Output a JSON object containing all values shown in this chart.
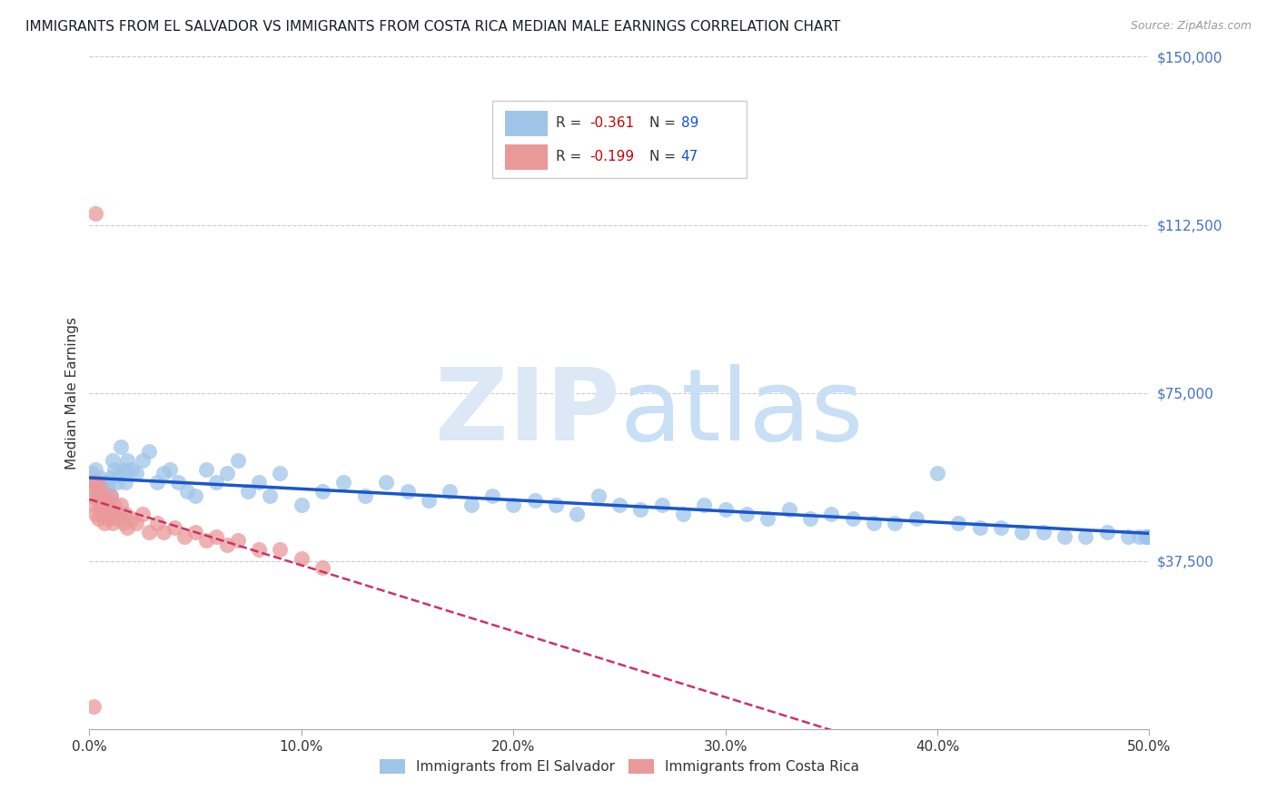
{
  "title": "IMMIGRANTS FROM EL SALVADOR VS IMMIGRANTS FROM COSTA RICA MEDIAN MALE EARNINGS CORRELATION CHART",
  "source": "Source: ZipAtlas.com",
  "ylabel": "Median Male Earnings",
  "R_blue": -0.361,
  "N_blue": 89,
  "R_pink": -0.199,
  "N_pink": 47,
  "blue_color": "#9fc5e8",
  "pink_color": "#ea9999",
  "trend_blue": "#1a56cc",
  "trend_pink": "#cc3366",
  "background_color": "#ffffff",
  "watermark_color": "#dce8f5",
  "ylim": [
    0,
    150000
  ],
  "xlim": [
    0.0,
    0.5
  ],
  "legend1_label": "Immigrants from El Salvador",
  "legend2_label": "Immigrants from Costa Rica",
  "blue_x": [
    0.001,
    0.002,
    0.003,
    0.003,
    0.004,
    0.004,
    0.005,
    0.005,
    0.006,
    0.006,
    0.007,
    0.007,
    0.008,
    0.008,
    0.009,
    0.009,
    0.01,
    0.01,
    0.011,
    0.012,
    0.013,
    0.014,
    0.015,
    0.016,
    0.017,
    0.018,
    0.02,
    0.022,
    0.025,
    0.028,
    0.032,
    0.035,
    0.038,
    0.042,
    0.046,
    0.05,
    0.055,
    0.06,
    0.065,
    0.07,
    0.075,
    0.08,
    0.085,
    0.09,
    0.1,
    0.11,
    0.12,
    0.13,
    0.14,
    0.15,
    0.16,
    0.17,
    0.18,
    0.19,
    0.2,
    0.21,
    0.22,
    0.23,
    0.24,
    0.25,
    0.26,
    0.27,
    0.28,
    0.29,
    0.3,
    0.31,
    0.32,
    0.33,
    0.34,
    0.35,
    0.36,
    0.37,
    0.38,
    0.39,
    0.4,
    0.41,
    0.42,
    0.43,
    0.44,
    0.45,
    0.46,
    0.47,
    0.48,
    0.49,
    0.495,
    0.498,
    0.499,
    0.5,
    0.5
  ],
  "blue_y": [
    57000,
    55000,
    53000,
    58000,
    51000,
    54000,
    50000,
    56000,
    52000,
    55000,
    50000,
    53000,
    49000,
    55000,
    51000,
    54000,
    52000,
    56000,
    60000,
    58000,
    55000,
    57000,
    63000,
    58000,
    55000,
    60000,
    58000,
    57000,
    60000,
    62000,
    55000,
    57000,
    58000,
    55000,
    53000,
    52000,
    58000,
    55000,
    57000,
    60000,
    53000,
    55000,
    52000,
    57000,
    50000,
    53000,
    55000,
    52000,
    55000,
    53000,
    51000,
    53000,
    50000,
    52000,
    50000,
    51000,
    50000,
    48000,
    52000,
    50000,
    49000,
    50000,
    48000,
    50000,
    49000,
    48000,
    47000,
    49000,
    47000,
    48000,
    47000,
    46000,
    46000,
    47000,
    57000,
    46000,
    45000,
    45000,
    44000,
    44000,
    43000,
    43000,
    44000,
    43000,
    43000,
    43000,
    43000,
    43000,
    43000
  ],
  "pink_x": [
    0.001,
    0.001,
    0.002,
    0.002,
    0.003,
    0.003,
    0.004,
    0.004,
    0.005,
    0.005,
    0.006,
    0.006,
    0.007,
    0.007,
    0.008,
    0.008,
    0.009,
    0.009,
    0.01,
    0.01,
    0.011,
    0.012,
    0.013,
    0.014,
    0.015,
    0.016,
    0.017,
    0.018,
    0.02,
    0.022,
    0.025,
    0.028,
    0.032,
    0.035,
    0.04,
    0.045,
    0.05,
    0.055,
    0.06,
    0.065,
    0.07,
    0.08,
    0.09,
    0.1,
    0.11,
    0.003,
    0.002
  ],
  "pink_y": [
    55000,
    52000,
    55000,
    50000,
    55000,
    48000,
    52000,
    47000,
    50000,
    54000,
    48000,
    52000,
    50000,
    46000,
    48000,
    51000,
    47000,
    50000,
    48000,
    52000,
    46000,
    50000,
    47000,
    48000,
    50000,
    46000,
    48000,
    45000,
    47000,
    46000,
    48000,
    44000,
    46000,
    44000,
    45000,
    43000,
    44000,
    42000,
    43000,
    41000,
    42000,
    40000,
    40000,
    38000,
    36000,
    115000,
    5000
  ]
}
